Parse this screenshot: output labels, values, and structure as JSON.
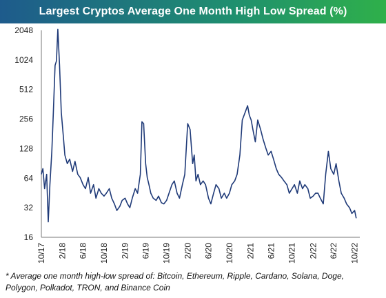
{
  "header": {
    "title": "Largest Cryptos Average One Month High Low Spread (%)"
  },
  "footnote": {
    "line1": "* Average one month high-low spread of: Bitcoin, Ethereum, Ripple, Cardano, Solana, Doge,",
    "line2": "Polygon, Polkadot, TRON, and Binance Coin"
  },
  "colors": {
    "line": "#1f3a78",
    "axis": "#777777",
    "title_bg_start": "#1e5b8c",
    "title_bg_end": "#2fb04a"
  },
  "chart_data": {
    "type": "line",
    "title": "Largest Cryptos Average One Month High Low Spread (%)",
    "xlabel": "",
    "ylabel": "",
    "y_scale": "log2",
    "ylim": [
      16,
      2048
    ],
    "xlim": [
      "2017-10-01",
      "2022-10-31"
    ],
    "grid": false,
    "legend": "none",
    "y_ticks": [
      "16",
      "32",
      "64",
      "128",
      "256",
      "512",
      "1024",
      "2048"
    ],
    "x_ticks": [
      {
        "label": "10/17",
        "date": "2017-10-01"
      },
      {
        "label": "2/18",
        "date": "2018-02-01"
      },
      {
        "label": "6/18",
        "date": "2018-06-01"
      },
      {
        "label": "10/18",
        "date": "2018-10-01"
      },
      {
        "label": "2/19",
        "date": "2019-02-01"
      },
      {
        "label": "6/19",
        "date": "2019-06-01"
      },
      {
        "label": "10/19",
        "date": "2019-10-01"
      },
      {
        "label": "2/20",
        "date": "2020-02-01"
      },
      {
        "label": "6/20",
        "date": "2020-06-01"
      },
      {
        "label": "10/20",
        "date": "2020-10-01"
      },
      {
        "label": "2/21",
        "date": "2021-02-01"
      },
      {
        "label": "6/21",
        "date": "2021-06-01"
      },
      {
        "label": "10/21",
        "date": "2021-10-01"
      },
      {
        "label": "2/22",
        "date": "2022-02-01"
      },
      {
        "label": "6/22",
        "date": "2022-06-01"
      },
      {
        "label": "10/22",
        "date": "2022-10-01"
      }
    ],
    "series": [
      {
        "x": [
          "2017-10-01",
          "2017-10-10",
          "2017-10-20",
          "2017-11-01",
          "2017-11-10",
          "2017-11-20",
          "2017-12-01",
          "2017-12-10",
          "2017-12-20",
          "2017-12-28",
          "2018-01-05",
          "2018-01-15",
          "2018-01-25",
          "2018-02-05",
          "2018-02-15",
          "2018-03-01",
          "2018-03-15",
          "2018-04-01",
          "2018-04-15",
          "2018-05-01",
          "2018-05-15",
          "2018-06-01",
          "2018-06-15",
          "2018-07-01",
          "2018-07-15",
          "2018-08-01",
          "2018-08-15",
          "2018-09-01",
          "2018-09-15",
          "2018-10-01",
          "2018-10-15",
          "2018-11-01",
          "2018-11-15",
          "2018-12-01",
          "2018-12-15",
          "2019-01-01",
          "2019-01-15",
          "2019-02-01",
          "2019-02-15",
          "2019-03-01",
          "2019-03-15",
          "2019-04-01",
          "2019-04-15",
          "2019-05-01",
          "2019-05-10",
          "2019-05-20",
          "2019-06-01",
          "2019-06-10",
          "2019-06-20",
          "2019-07-01",
          "2019-07-15",
          "2019-08-01",
          "2019-08-15",
          "2019-09-01",
          "2019-09-15",
          "2019-10-01",
          "2019-10-15",
          "2019-11-01",
          "2019-11-15",
          "2019-12-01",
          "2019-12-15",
          "2020-01-01",
          "2020-01-15",
          "2020-02-01",
          "2020-02-15",
          "2020-03-01",
          "2020-03-10",
          "2020-03-20",
          "2020-04-01",
          "2020-04-15",
          "2020-05-01",
          "2020-05-15",
          "2020-06-01",
          "2020-06-15",
          "2020-07-01",
          "2020-07-15",
          "2020-08-01",
          "2020-08-15",
          "2020-09-01",
          "2020-09-15",
          "2020-10-01",
          "2020-10-15",
          "2020-11-01",
          "2020-11-15",
          "2020-12-01",
          "2020-12-15",
          "2021-01-01",
          "2021-01-15",
          "2021-01-25",
          "2021-02-05",
          "2021-02-15",
          "2021-03-01",
          "2021-03-15",
          "2021-04-01",
          "2021-04-15",
          "2021-05-01",
          "2021-05-15",
          "2021-06-01",
          "2021-06-15",
          "2021-07-01",
          "2021-07-15",
          "2021-08-01",
          "2021-08-15",
          "2021-09-01",
          "2021-09-15",
          "2021-10-01",
          "2021-10-15",
          "2021-11-01",
          "2021-11-15",
          "2021-12-01",
          "2021-12-15",
          "2022-01-01",
          "2022-01-15",
          "2022-02-01",
          "2022-02-15",
          "2022-03-01",
          "2022-03-15",
          "2022-04-01",
          "2022-04-15",
          "2022-05-01",
          "2022-05-15",
          "2022-06-01",
          "2022-06-15",
          "2022-07-01",
          "2022-07-15",
          "2022-08-01",
          "2022-08-15",
          "2022-09-01",
          "2022-09-15",
          "2022-10-01",
          "2022-10-10"
        ],
        "values": [
          70,
          80,
          50,
          70,
          23,
          55,
          120,
          300,
          900,
          1000,
          2100,
          900,
          300,
          180,
          110,
          90,
          100,
          75,
          95,
          70,
          65,
          55,
          50,
          65,
          45,
          55,
          40,
          50,
          45,
          42,
          45,
          50,
          40,
          35,
          30,
          33,
          38,
          40,
          35,
          32,
          40,
          50,
          45,
          70,
          240,
          230,
          90,
          65,
          55,
          45,
          40,
          38,
          42,
          36,
          35,
          38,
          45,
          55,
          60,
          45,
          40,
          55,
          70,
          230,
          200,
          90,
          110,
          60,
          70,
          55,
          60,
          55,
          40,
          35,
          45,
          55,
          50,
          40,
          45,
          40,
          45,
          55,
          60,
          70,
          110,
          250,
          300,
          350,
          280,
          250,
          200,
          150,
          250,
          200,
          160,
          130,
          110,
          120,
          100,
          80,
          70,
          65,
          60,
          55,
          45,
          50,
          55,
          45,
          60,
          50,
          55,
          50,
          40,
          42,
          45,
          45,
          40,
          35,
          70,
          120,
          80,
          70,
          90,
          60,
          45,
          40,
          35,
          32,
          28,
          30,
          25
        ]
      }
    ]
  }
}
